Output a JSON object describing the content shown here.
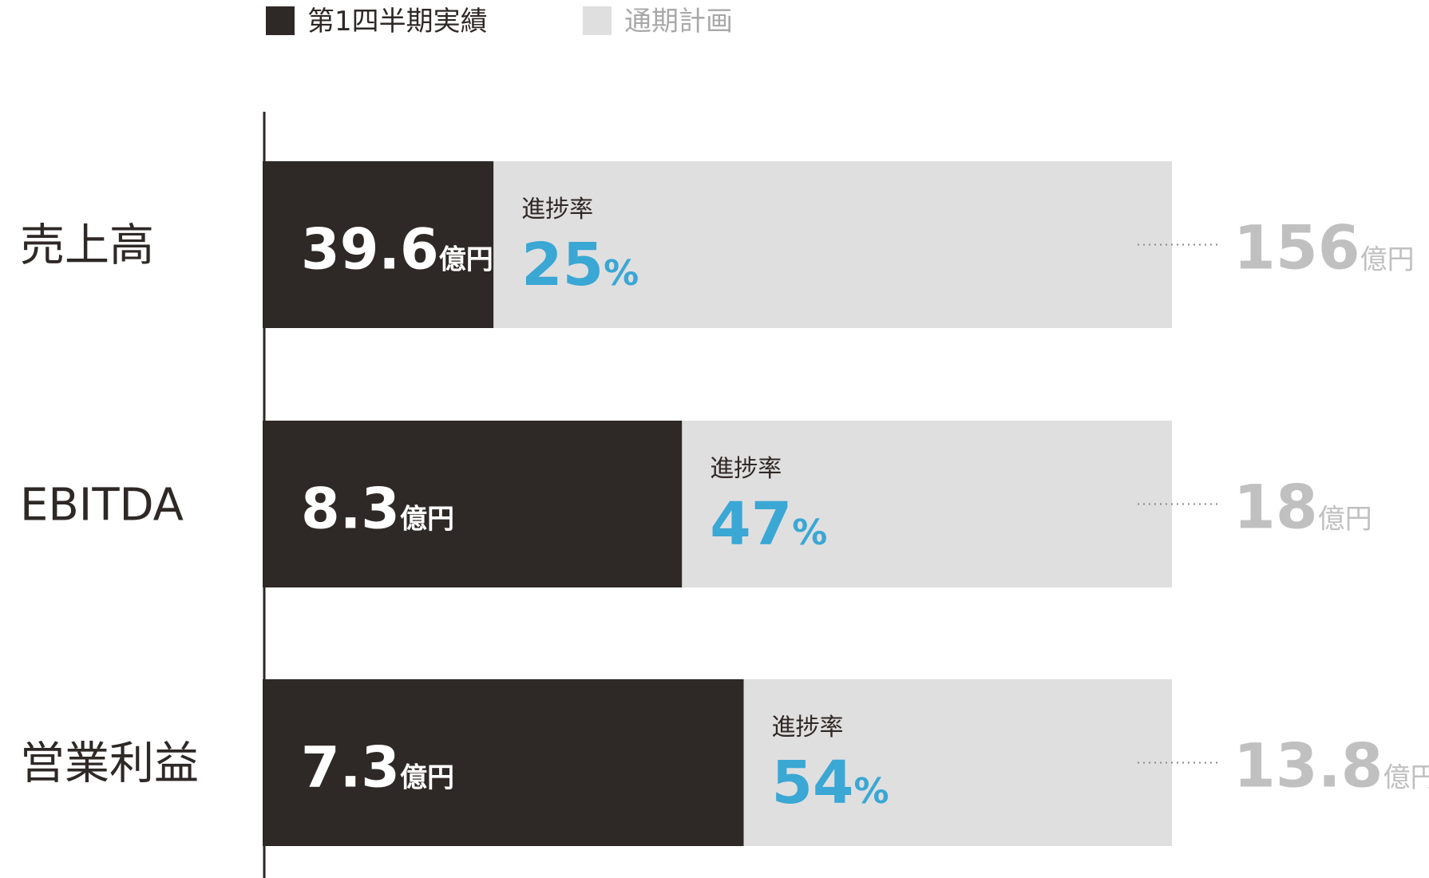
{
  "chart_data": {
    "type": "bar",
    "orientation": "horizontal",
    "categories": [
      "売上高",
      "EBITDA",
      "営業利益"
    ],
    "series": [
      {
        "name": "第1四半期実績",
        "color": "#2e2826",
        "values": [
          39.6,
          8.3,
          7.3
        ]
      },
      {
        "name": "通期計画",
        "color": "#e0dfdf",
        "values": [
          156,
          18,
          13.8
        ]
      }
    ],
    "unit": "億円",
    "rate_label": "進捗率",
    "rate_values": [
      25,
      47,
      54
    ],
    "rate_unit": "%",
    "rate_color": "#3aa7d4",
    "plan_label_color": "#c0c0c0"
  }
}
